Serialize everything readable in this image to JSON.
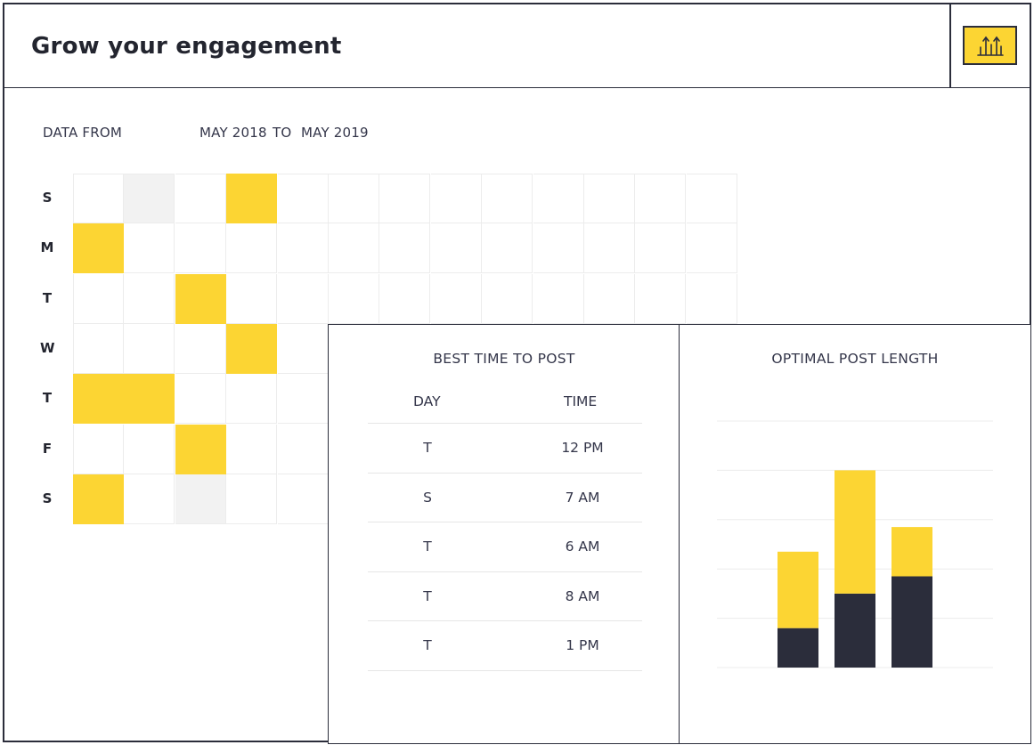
{
  "header": {
    "title": "Grow your engagement",
    "action_icon": "bar-chart-arrows-icon"
  },
  "date_range": {
    "label": "DATA FROM",
    "from": "MAY 2018",
    "separator": "TO",
    "to": "MAY 2019"
  },
  "heatmap": {
    "days": [
      "S",
      "M",
      "T",
      "W",
      "T",
      "F",
      "S"
    ],
    "columns": 13,
    "highlight_color": "#fcd533",
    "muted_color": "#f2f2f2",
    "highlighted": [
      [
        0,
        3
      ],
      [
        1,
        0
      ],
      [
        2,
        2
      ],
      [
        3,
        3
      ],
      [
        4,
        0
      ],
      [
        4,
        1
      ],
      [
        5,
        2
      ],
      [
        6,
        0
      ]
    ],
    "muted": [
      [
        0,
        1
      ],
      [
        6,
        2
      ]
    ]
  },
  "best_time": {
    "title": "BEST TIME TO POST",
    "col_day": "DAY",
    "col_time": "TIME",
    "rows": [
      {
        "day": "T",
        "time": "12 PM"
      },
      {
        "day": "S",
        "time": "7 AM"
      },
      {
        "day": "T",
        "time": "6 AM"
      },
      {
        "day": "T",
        "time": "8 AM"
      },
      {
        "day": "T",
        "time": "1 PM"
      }
    ]
  },
  "optimal_length": {
    "title": "OPTIMAL POST  LENGTH"
  },
  "chart_data": {
    "type": "bar",
    "stacked": true,
    "categories": [
      "",
      "",
      ""
    ],
    "series": [
      {
        "color": "#2b2d3b",
        "values": [
          1.6,
          3.0,
          3.7
        ]
      },
      {
        "color": "#fcd533",
        "values": [
          3.1,
          5.0,
          2.0
        ]
      }
    ],
    "ylim": [
      0,
      10
    ],
    "grid": true
  }
}
